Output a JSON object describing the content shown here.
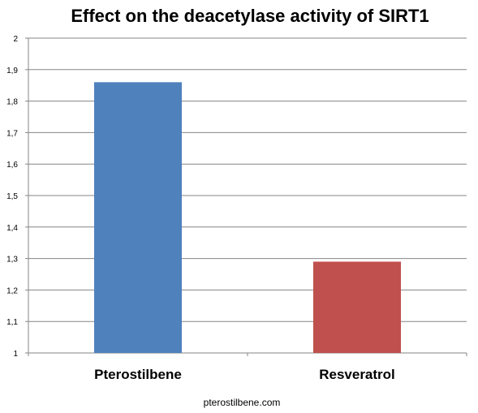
{
  "chart_data": {
    "type": "bar",
    "title": "Effect on the deacetylase activity of SIRT1",
    "categories": [
      "Pterostilbene",
      "Resveratrol"
    ],
    "values": [
      1.86,
      1.29
    ],
    "colors": [
      "#4f81bd",
      "#c0504d"
    ],
    "ylim": [
      1,
      2
    ],
    "yticks": [
      "1",
      "1,1",
      "1,2",
      "1,3",
      "1,4",
      "1,5",
      "1,6",
      "1,7",
      "1,8",
      "1,9",
      "2"
    ],
    "grid": true,
    "legend": "none"
  },
  "footer": {
    "source": "pterostilbene.com"
  }
}
